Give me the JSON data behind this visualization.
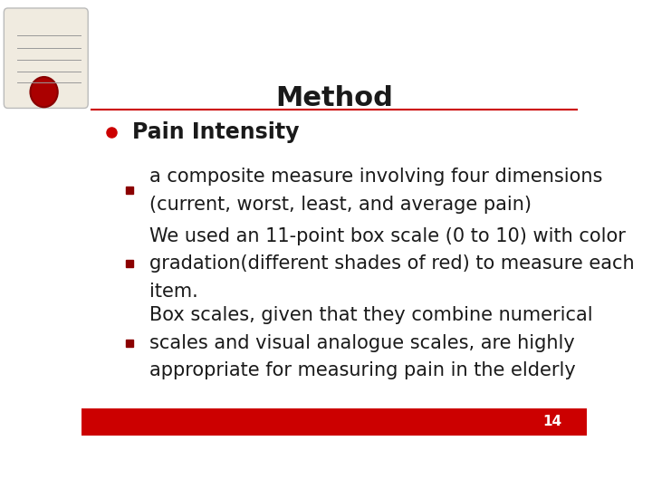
{
  "title": "Method",
  "title_fontsize": 22,
  "title_fontweight": "bold",
  "bg_color": "#ffffff",
  "title_line_color": "#cc0000",
  "bottom_bar_color": "#cc0000",
  "bullet1_text": "Pain Intensity",
  "bullet1_color": "#cc0000",
  "sub_items": [
    {
      "text": "a composite measure involving four dimensions\n(current, worst, least, and average pain)"
    },
    {
      "text": "We used an 11-point box scale (0 to 10) with color\ngradation(different shades of red) to measure each\nitem."
    },
    {
      "text": "Box scales, given that they combine numerical\nscales and visual analogue scales, are highly\nappropriate for measuring pain in the elderly"
    }
  ],
  "page_number": "14",
  "text_color": "#1a1a1a",
  "sub_marker_color": "#8b0000",
  "fontsize_bullet1": 17,
  "fontsize_subitems": 15
}
